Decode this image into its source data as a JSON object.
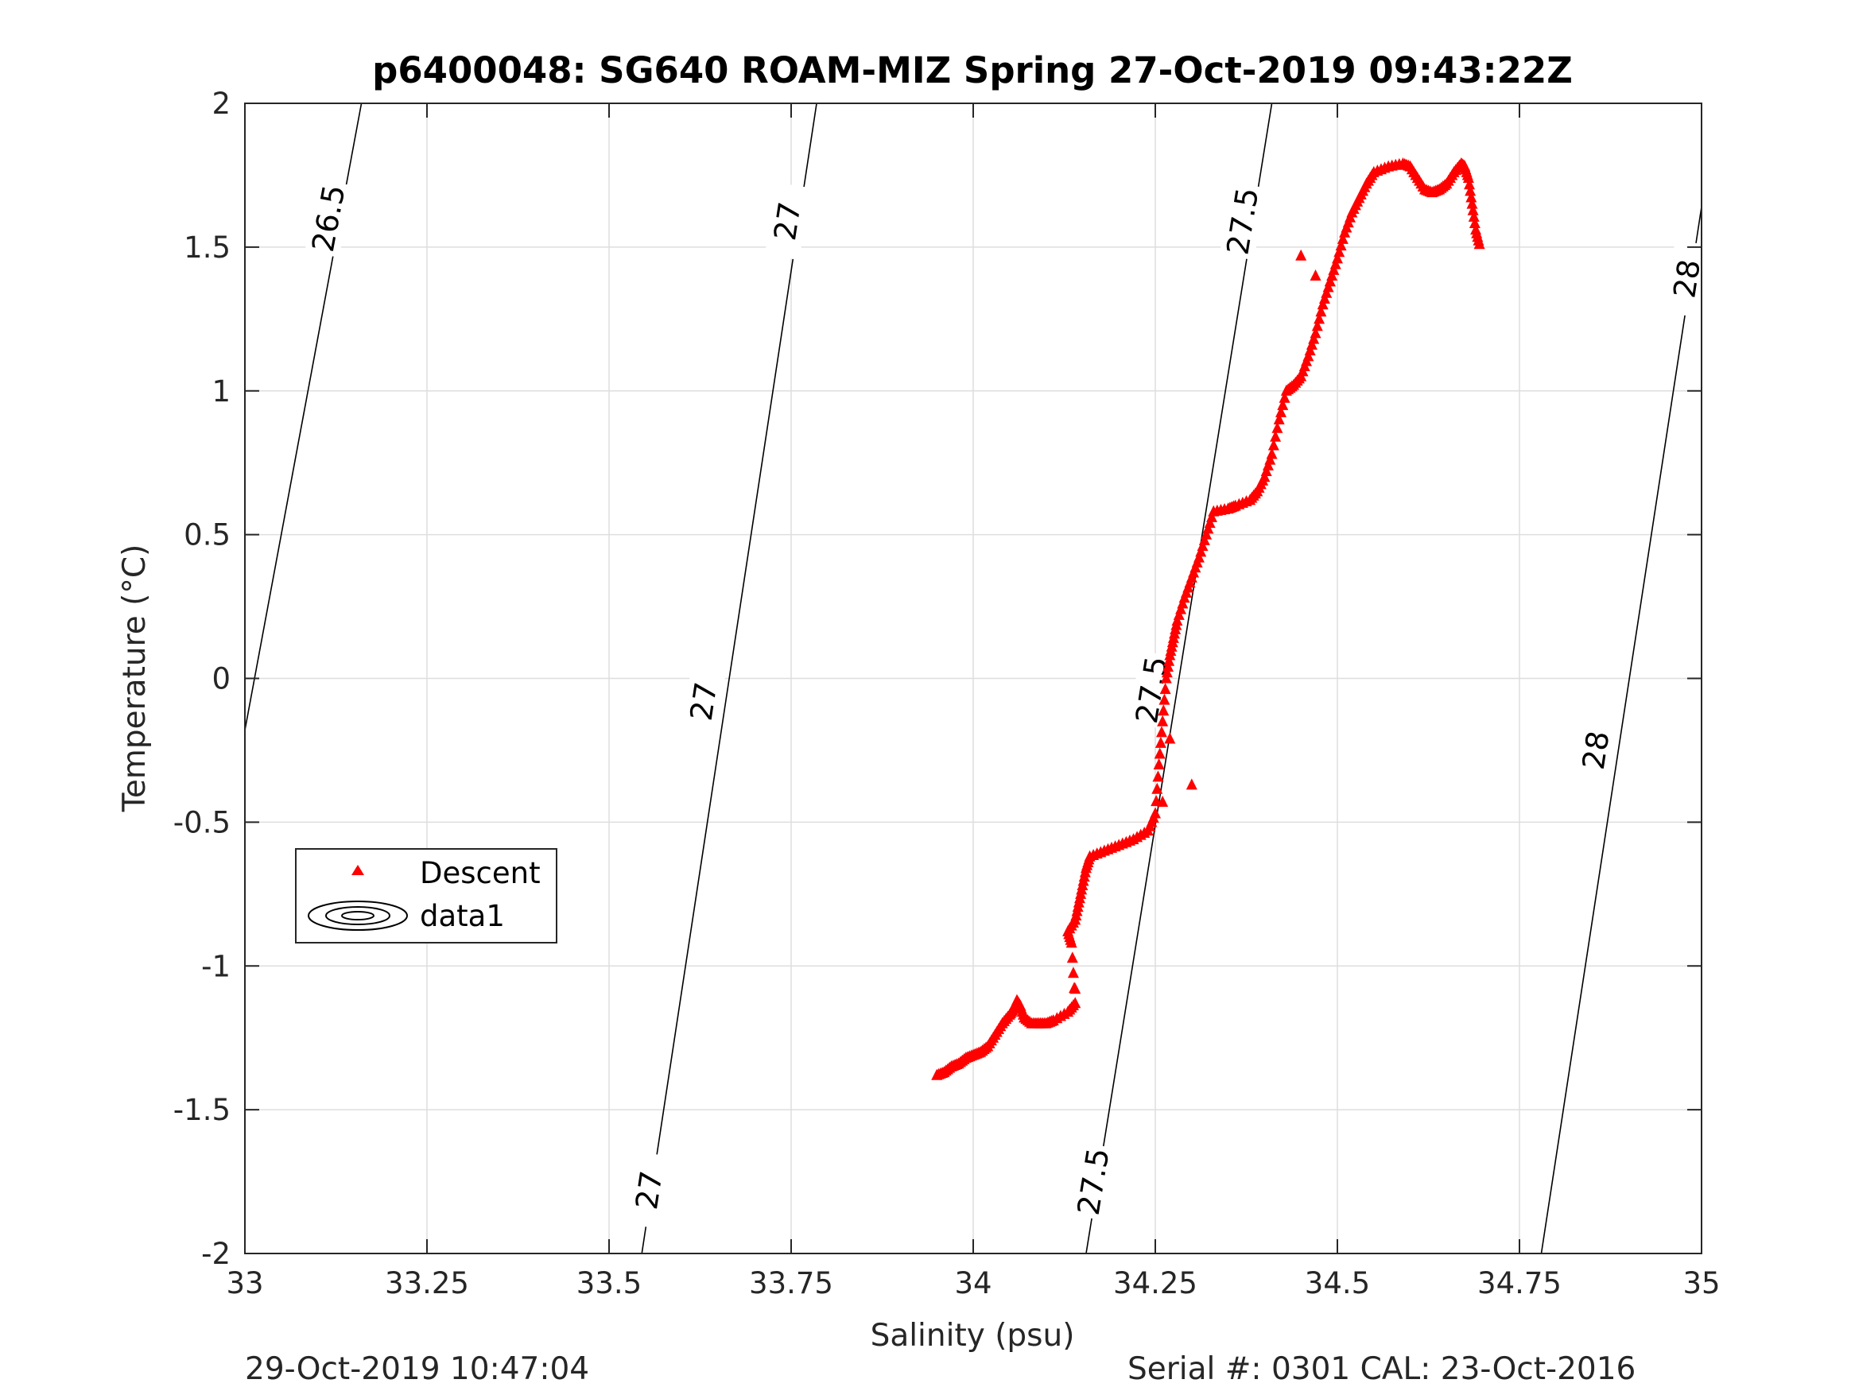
{
  "chart_data": {
    "type": "scatter",
    "title": "p6400048: SG640 ROAM-MIZ Spring 27-Oct-2019 09:43:22Z",
    "xlabel": "Salinity (psu)",
    "ylabel": "Temperature (°C)",
    "xlim": [
      33,
      35
    ],
    "ylim": [
      -2,
      2
    ],
    "xticks": [
      33,
      33.25,
      33.5,
      33.75,
      34,
      34.25,
      34.5,
      34.75,
      35
    ],
    "xtick_labels": [
      "33",
      "33.25",
      "33.5",
      "33.75",
      "34",
      "34.25",
      "34.5",
      "34.75",
      "35"
    ],
    "yticks": [
      2,
      1.5,
      1,
      0.5,
      0,
      -0.5,
      -1,
      -1.5,
      -2
    ],
    "ytick_labels": [
      "2",
      "1.5",
      "1",
      "0.5",
      "0",
      "-0.5",
      "-1",
      "-1.5",
      "-2"
    ],
    "grid": true,
    "legend_position": "lower-left",
    "series": [
      {
        "name": "Descent",
        "marker": "triangle",
        "color": "#ff0000",
        "x": [
          33.95,
          33.96,
          33.97,
          33.98,
          33.99,
          34.0,
          34.01,
          34.02,
          34.03,
          34.04,
          34.05,
          34.055,
          34.06,
          34.065,
          34.07,
          34.08,
          34.09,
          34.1,
          34.11,
          34.13,
          34.14,
          34.135,
          34.13,
          34.14,
          34.145,
          34.15,
          34.155,
          34.16,
          34.18,
          34.2,
          34.22,
          34.24,
          34.25,
          34.255,
          34.26,
          34.265,
          34.27,
          34.275,
          34.28,
          34.29,
          34.3,
          34.31,
          34.32,
          34.33,
          34.35,
          34.36,
          34.38,
          34.39,
          34.4,
          34.41,
          34.42,
          34.43,
          34.44,
          34.45,
          34.46,
          34.47,
          34.48,
          34.49,
          34.5,
          34.51,
          34.52,
          34.53,
          34.54,
          34.55,
          34.57,
          34.59,
          34.6,
          34.61,
          34.62,
          34.63,
          34.64,
          34.65,
          34.66,
          34.67,
          34.675,
          34.68,
          34.685,
          34.69,
          34.695,
          34.3,
          34.27,
          34.14,
          34.26,
          34.45,
          34.47,
          34.49
        ],
        "y": [
          -1.38,
          -1.37,
          -1.35,
          -1.34,
          -1.32,
          -1.31,
          -1.3,
          -1.28,
          -1.24,
          -1.2,
          -1.17,
          -1.15,
          -1.12,
          -1.14,
          -1.18,
          -1.2,
          -1.2,
          -1.2,
          -1.19,
          -1.16,
          -1.13,
          -0.92,
          -0.88,
          -0.84,
          -0.78,
          -0.72,
          -0.66,
          -0.62,
          -0.6,
          -0.58,
          -0.56,
          -0.53,
          -0.47,
          -0.3,
          -0.15,
          0.0,
          0.08,
          0.14,
          0.2,
          0.28,
          0.35,
          0.42,
          0.5,
          0.58,
          0.59,
          0.6,
          0.62,
          0.65,
          0.7,
          0.78,
          0.9,
          1.0,
          1.02,
          1.05,
          1.12,
          1.2,
          1.3,
          1.38,
          1.46,
          1.55,
          1.62,
          1.67,
          1.72,
          1.76,
          1.78,
          1.79,
          1.78,
          1.74,
          1.7,
          1.69,
          1.7,
          1.72,
          1.76,
          1.79,
          1.78,
          1.74,
          1.65,
          1.56,
          1.51,
          -0.37,
          -0.21,
          -1.08,
          -0.43,
          1.47,
          1.4,
          1.38
        ]
      }
    ],
    "contours": [
      {
        "name": "data1",
        "level_labels": [
          "26.5",
          "27",
          "27.5",
          "28"
        ]
      }
    ],
    "footer_left": "29-Oct-2019 10:47:04",
    "footer_right": "Serial #: 0301  CAL: 23-Oct-2016"
  }
}
